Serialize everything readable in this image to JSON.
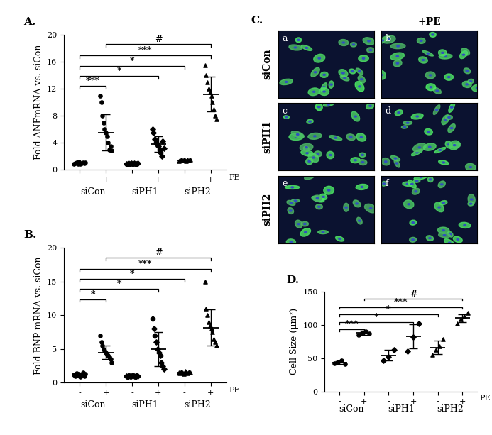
{
  "chart_data": [
    {
      "type": "dot",
      "title": "A.",
      "y_label": "Fold ANFmRNA vs. siCon",
      "x_label": "PE",
      "categories": [
        "-",
        "+",
        "-",
        "+",
        "-",
        "+"
      ],
      "ylim": [
        0,
        20
      ],
      "yticks": [
        0,
        4,
        8,
        12,
        16,
        20
      ],
      "series": [
        {
          "name": "siCon",
          "color": "#000000",
          "marker": "circle",
          "values": [
            [
              0.9,
              1.0,
              1.1,
              0.8,
              1.2,
              0.9,
              1.0,
              1.1,
              0.95,
              1.05
            ],
            [
              11,
              10,
              8,
              7,
              6,
              5.5,
              5,
              4,
              3,
              3.5,
              2.8
            ]
          ],
          "mean": [
            1.0,
            5.5
          ],
          "sd": [
            0.12,
            2.7
          ]
        },
        {
          "name": "siPH1",
          "color": "#000000",
          "marker": "diamond",
          "values": [
            [
              0.9,
              0.8,
              1.0,
              0.85,
              0.95,
              0.9,
              1.0,
              0.8,
              0.9,
              0.95
            ],
            [
              6,
              5.5,
              4.5,
              4,
              3.8,
              3.5,
              3,
              2.5,
              2,
              4.2,
              3.2
            ]
          ],
          "mean": [
            0.9,
            3.8
          ],
          "sd": [
            0.08,
            1.2
          ]
        },
        {
          "name": "siPH2",
          "color": "#000000",
          "marker": "triangle",
          "values": [
            [
              1.3,
              1.4,
              1.5,
              1.35,
              1.45,
              1.4,
              1.3,
              1.5,
              1.4,
              1.45
            ],
            [
              15.5,
              14,
              13,
              12,
              11.5,
              11,
              10,
              9,
              8,
              7.5
            ]
          ],
          "mean": [
            1.4,
            11.2
          ],
          "sd": [
            0.07,
            2.6
          ]
        }
      ],
      "comparisons": [
        {
          "from": 0,
          "to": 1,
          "text": "***"
        },
        {
          "from": 0,
          "to": 3,
          "text": "*"
        },
        {
          "from": 0,
          "to": 4,
          "text": "*"
        },
        {
          "from": 0,
          "to": 5,
          "text": "***"
        },
        {
          "from": 1,
          "to": 5,
          "text": "#"
        }
      ]
    },
    {
      "type": "dot",
      "title": "B.",
      "y_label": "Fold BNP mRNA vs. siCon",
      "x_label": "PE",
      "categories": [
        "-",
        "+",
        "-",
        "+",
        "-",
        "+"
      ],
      "ylim": [
        0,
        20
      ],
      "yticks": [
        0,
        5,
        10,
        15,
        20
      ],
      "series": [
        {
          "name": "siCon",
          "color": "#000000",
          "marker": "circle",
          "values": [
            [
              1.2,
              1.0,
              1.4,
              1.1,
              1.3,
              0.9,
              1.2,
              1.5,
              1.0,
              1.3
            ],
            [
              7,
              6,
              5.5,
              5,
              4.8,
              4.5,
              4.2,
              4,
              3.8,
              3.5,
              3
            ]
          ],
          "mean": [
            1.2,
            4.5
          ],
          "sd": [
            0.2,
            1.0
          ]
        },
        {
          "name": "siPH1",
          "color": "#000000",
          "marker": "diamond",
          "values": [
            [
              1.0,
              0.9,
              1.1,
              1.0,
              0.95,
              1.05,
              1.0,
              0.9,
              1.1,
              1.0
            ],
            [
              9.5,
              8,
              7,
              6,
              5,
              4.5,
              4,
              3,
              2.5,
              2
            ]
          ],
          "mean": [
            1.0,
            5.0
          ],
          "sd": [
            0.07,
            2.5
          ]
        },
        {
          "name": "siPH2",
          "color": "#000000",
          "marker": "triangle",
          "values": [
            [
              1.5,
              1.4,
              1.6,
              1.5,
              1.3,
              1.7,
              1.5,
              1.4,
              1.6,
              1.5
            ],
            [
              15,
              11,
              10,
              9,
              8.5,
              8,
              7.5,
              6.5,
              6,
              5.5
            ]
          ],
          "mean": [
            1.5,
            8.2
          ],
          "sd": [
            0.12,
            2.7
          ]
        }
      ],
      "comparisons": [
        {
          "from": 0,
          "to": 1,
          "text": "*"
        },
        {
          "from": 0,
          "to": 3,
          "text": "*"
        },
        {
          "from": 0,
          "to": 4,
          "text": "*"
        },
        {
          "from": 0,
          "to": 5,
          "text": "***"
        },
        {
          "from": 1,
          "to": 5,
          "text": "#"
        }
      ]
    },
    {
      "type": "image_grid",
      "title": "C.",
      "column_header": "+PE",
      "rows": [
        "siCon",
        "siPH1",
        "siPH2"
      ],
      "panels": [
        [
          "a",
          "b"
        ],
        [
          "c",
          "d"
        ],
        [
          "e",
          "f"
        ]
      ]
    },
    {
      "type": "dot",
      "title": "D.",
      "y_label": "Cell Size (μm²)",
      "x_label": "PE",
      "categories": [
        "-",
        "+",
        "-",
        "+",
        "-",
        "+"
      ],
      "ylim": [
        0,
        150
      ],
      "yticks": [
        0,
        50,
        100,
        150
      ],
      "series": [
        {
          "name": "siCon",
          "color": "#000000",
          "marker": "circle",
          "values": [
            [
              42,
              44,
              46,
              41
            ],
            [
              85,
              88,
              90,
              87
            ]
          ],
          "mean": [
            43,
            88
          ],
          "sd": [
            2,
            3
          ]
        },
        {
          "name": "siPH1",
          "color": "#000000",
          "marker": "diamond",
          "values": [
            [
              47,
              52,
              62
            ],
            [
              60,
              82,
              102
            ]
          ],
          "mean": [
            54,
            83
          ],
          "sd": [
            8,
            18
          ]
        },
        {
          "name": "siPH2",
          "color": "#000000",
          "marker": "triangle",
          "values": [
            [
              55,
              62,
              68,
              78
            ],
            [
              102,
              108,
              112,
              118
            ]
          ],
          "mean": [
            66,
            110
          ],
          "sd": [
            10,
            6
          ]
        }
      ],
      "comparisons": [
        {
          "from": 0,
          "to": 1,
          "text": "***"
        },
        {
          "from": 0,
          "to": 3,
          "text": "*"
        },
        {
          "from": 0,
          "to": 4,
          "text": "*"
        },
        {
          "from": 0,
          "to": 5,
          "text": "***"
        },
        {
          "from": 1,
          "to": 5,
          "text": "#"
        }
      ]
    }
  ]
}
